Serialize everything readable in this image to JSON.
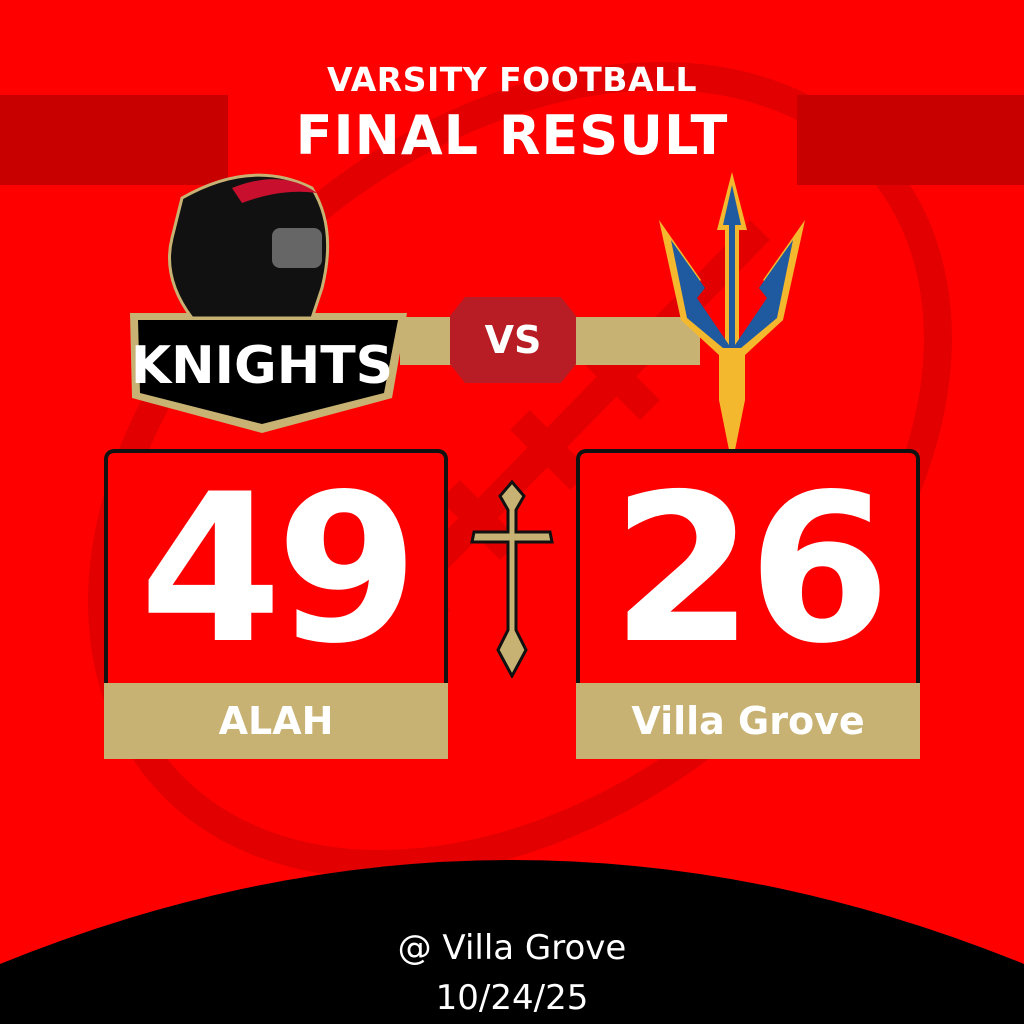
{
  "header": {
    "line1": "VARSITY FOOTBALL",
    "line2": "FINAL RESULT"
  },
  "vs_label": "VS",
  "home": {
    "logo_text": "ALAH KNIGHTS",
    "score": "49",
    "name": "ALAH"
  },
  "away": {
    "score": "26",
    "name": "Villa Grove"
  },
  "footer": {
    "venue": "@ Villa Grove",
    "date": "10/24/25"
  },
  "colors": {
    "background": "#ff0000",
    "gold": "#c8b273",
    "vs_badge": "#b81c24",
    "footer": "#000000"
  }
}
